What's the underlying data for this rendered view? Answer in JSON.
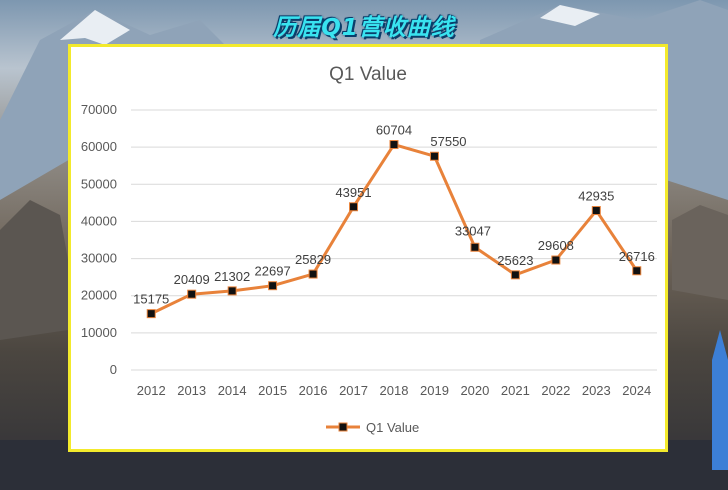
{
  "banner": {
    "title": "历届Q1营收曲线"
  },
  "chart_data": {
    "type": "line",
    "title": "Q1 Value",
    "categories": [
      "2012",
      "2013",
      "2014",
      "2015",
      "2016",
      "2017",
      "2018",
      "2019",
      "2020",
      "2021",
      "2022",
      "2023",
      "2024"
    ],
    "series": [
      {
        "name": "Q1 Value",
        "values": [
          15175,
          20409,
          21302,
          22697,
          25829,
          43951,
          60704,
          57550,
          33047,
          25623,
          29608,
          42935,
          26716
        ]
      }
    ],
    "y_ticks": [
      "0",
      "10000",
      "20000",
      "30000",
      "40000",
      "50000",
      "60000",
      "70000"
    ],
    "ylim": [
      0,
      70000
    ],
    "grid": true,
    "legend_position": "bottom",
    "line_color": "#e8823a",
    "marker_color": "#111111"
  }
}
